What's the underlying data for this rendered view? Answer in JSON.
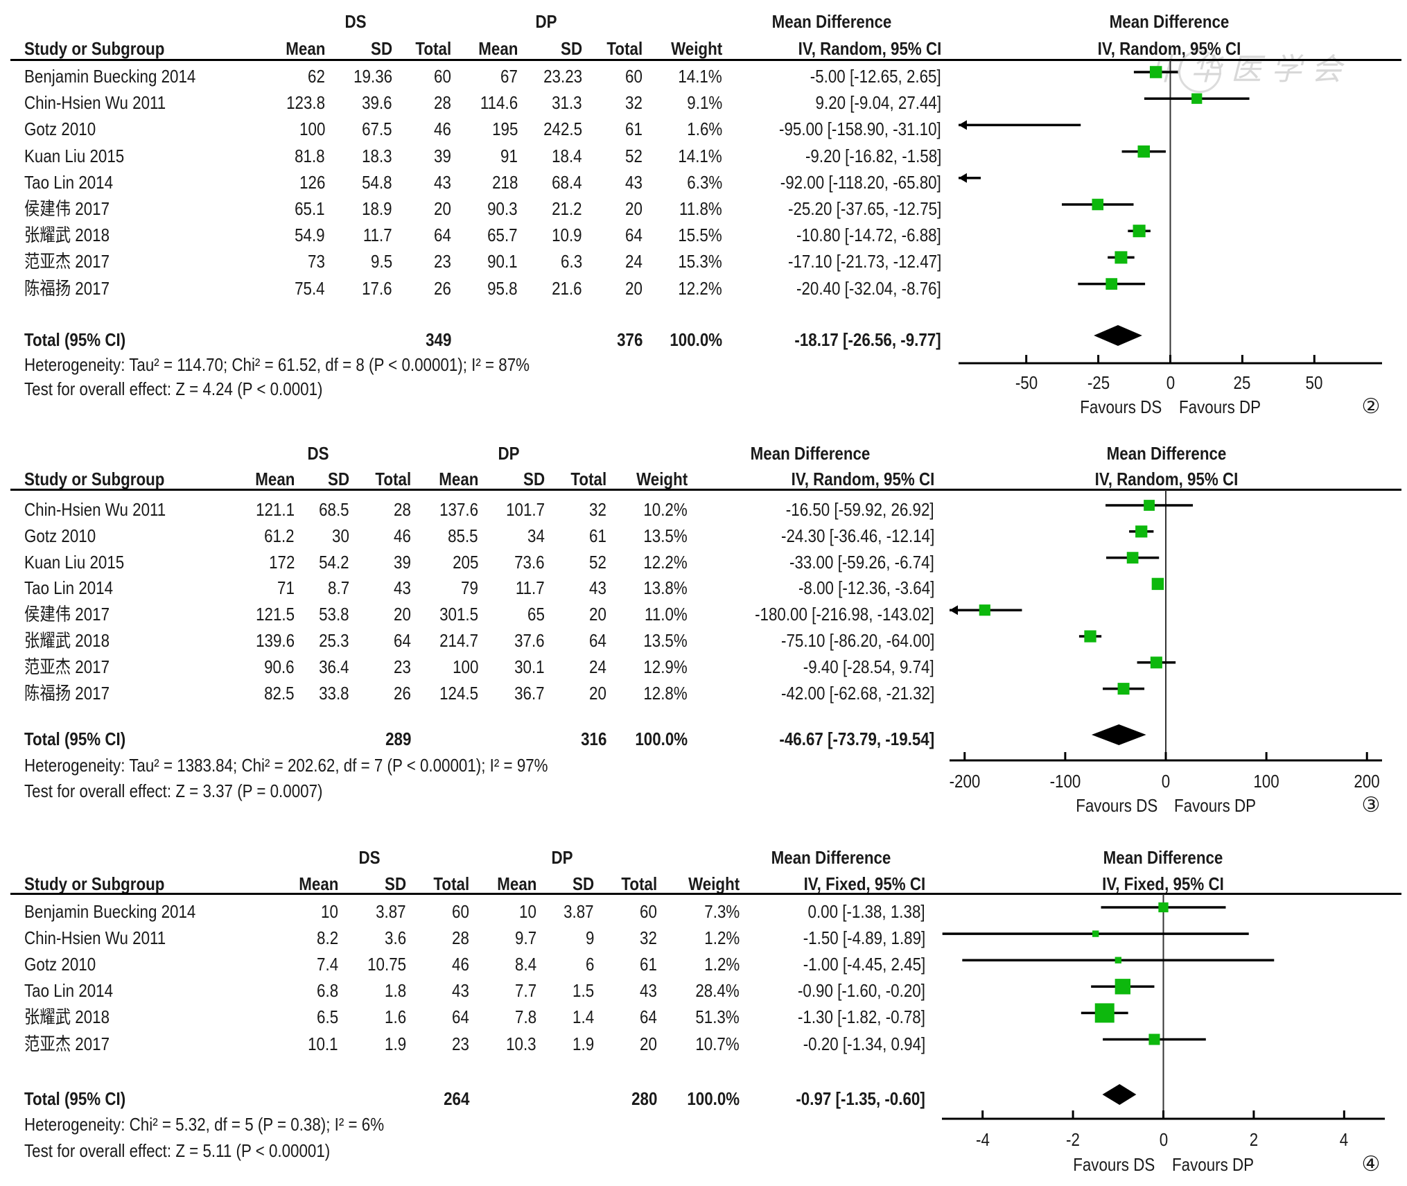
{
  "watermark": "中华医学会",
  "colors": {
    "square": "#0db80d",
    "line": "#000000",
    "diamond": "#000000",
    "text": "#1a1a1a"
  },
  "chart_data": [
    {
      "type": "forest",
      "panel_label": "②",
      "group_a": "DS",
      "group_b": "DP",
      "columns": [
        "Study or Subgroup",
        "Mean",
        "SD",
        "Total",
        "Mean",
        "SD",
        "Total",
        "Weight"
      ],
      "effect_header": [
        "Mean Difference",
        "IV, Random, 95% CI"
      ],
      "plot_header": [
        "Mean Difference",
        "IV, Random, 95% CI"
      ],
      "studies": [
        {
          "name": "Benjamin Buecking 2014",
          "a_mean": "62",
          "a_sd": "19.36",
          "a_total": "60",
          "b_mean": "67",
          "b_sd": "23.23",
          "b_total": "60",
          "weight": "14.1%",
          "ci_text": "-5.00 [-12.65, 2.65]",
          "md": -5.0,
          "lo": -12.65,
          "hi": 2.65,
          "w": 14.1
        },
        {
          "name": "Chin-Hsien Wu 2011",
          "a_mean": "123.8",
          "a_sd": "39.6",
          "a_total": "28",
          "b_mean": "114.6",
          "b_sd": "31.3",
          "b_total": "32",
          "weight": "9.1%",
          "ci_text": "9.20 [-9.04, 27.44]",
          "md": 9.2,
          "lo": -9.04,
          "hi": 27.44,
          "w": 9.1
        },
        {
          "name": "Gotz 2010",
          "a_mean": "100",
          "a_sd": "67.5",
          "a_total": "46",
          "b_mean": "195",
          "b_sd": "242.5",
          "b_total": "61",
          "weight": "1.6%",
          "ci_text": "-95.00 [-158.90, -31.10]",
          "md": -95.0,
          "lo": -158.9,
          "hi": -31.1,
          "w": 1.6
        },
        {
          "name": "Kuan Liu 2015",
          "a_mean": "81.8",
          "a_sd": "18.3",
          "a_total": "39",
          "b_mean": "91",
          "b_sd": "18.4",
          "b_total": "52",
          "weight": "14.1%",
          "ci_text": "-9.20 [-16.82, -1.58]",
          "md": -9.2,
          "lo": -16.82,
          "hi": -1.58,
          "w": 14.1
        },
        {
          "name": "Tao Lin 2014",
          "a_mean": "126",
          "a_sd": "54.8",
          "a_total": "43",
          "b_mean": "218",
          "b_sd": "68.4",
          "b_total": "43",
          "weight": "6.3%",
          "ci_text": "-92.00 [-118.20, -65.80]",
          "md": -92.0,
          "lo": -118.2,
          "hi": -65.8,
          "w": 6.3
        },
        {
          "name": "侯建伟 2017",
          "a_mean": "65.1",
          "a_sd": "18.9",
          "a_total": "20",
          "b_mean": "90.3",
          "b_sd": "21.2",
          "b_total": "20",
          "weight": "11.8%",
          "ci_text": "-25.20 [-37.65, -12.75]",
          "md": -25.2,
          "lo": -37.65,
          "hi": -12.75,
          "w": 11.8
        },
        {
          "name": "张耀武 2018",
          "a_mean": "54.9",
          "a_sd": "11.7",
          "a_total": "64",
          "b_mean": "65.7",
          "b_sd": "10.9",
          "b_total": "64",
          "weight": "15.5%",
          "ci_text": "-10.80 [-14.72, -6.88]",
          "md": -10.8,
          "lo": -14.72,
          "hi": -6.88,
          "w": 15.5
        },
        {
          "name": "范亚杰 2017",
          "a_mean": "73",
          "a_sd": "9.5",
          "a_total": "23",
          "b_mean": "90.1",
          "b_sd": "6.3",
          "b_total": "24",
          "weight": "15.3%",
          "ci_text": "-17.10 [-21.73, -12.47]",
          "md": -17.1,
          "lo": -21.73,
          "hi": -12.47,
          "w": 15.3
        },
        {
          "name": "陈福扬 2017",
          "a_mean": "75.4",
          "a_sd": "17.6",
          "a_total": "26",
          "b_mean": "95.8",
          "b_sd": "21.6",
          "b_total": "20",
          "weight": "12.2%",
          "ci_text": "-20.40 [-32.04, -8.76]",
          "md": -20.4,
          "lo": -32.04,
          "hi": -8.76,
          "w": 12.2
        }
      ],
      "total": {
        "label": "Total (95% CI)",
        "a_total": "349",
        "b_total": "376",
        "weight": "100.0%",
        "ci_text": "-18.17 [-26.56, -9.77]",
        "md": -18.17,
        "lo": -26.56,
        "hi": -9.77
      },
      "heterogeneity": "Heterogeneity: Tau² = 114.70; Chi² = 61.52, df = 8 (P < 0.00001); I² = 87%",
      "overall_effect": "Test for overall effect: Z = 4.24 (P < 0.0001)",
      "xlim": [
        -73.5,
        73.5
      ],
      "xticks": [
        -50,
        -25,
        0,
        25,
        50
      ],
      "xtick_labels": [
        "-50",
        "-25",
        "0",
        "25",
        "50"
      ],
      "favours_left": "Favours DS",
      "favours_right": "Favours DP"
    },
    {
      "type": "forest",
      "panel_label": "③",
      "group_a": "DS",
      "group_b": "DP",
      "columns": [
        "Study or Subgroup",
        "Mean",
        "SD",
        "Total",
        "Mean",
        "SD",
        "Total",
        "Weight"
      ],
      "effect_header": [
        "Mean Difference",
        "IV, Random, 95% CI"
      ],
      "plot_header": [
        "Mean Difference",
        "IV, Random, 95% CI"
      ],
      "studies": [
        {
          "name": "Chin-Hsien Wu 2011",
          "a_mean": "121.1",
          "a_sd": "68.5",
          "a_total": "28",
          "b_mean": "137.6",
          "b_sd": "101.7",
          "b_total": "32",
          "weight": "10.2%",
          "ci_text": "-16.50 [-59.92, 26.92]",
          "md": -16.5,
          "lo": -59.92,
          "hi": 26.92,
          "w": 10.2
        },
        {
          "name": "Gotz 2010",
          "a_mean": "61.2",
          "a_sd": "30",
          "a_total": "46",
          "b_mean": "85.5",
          "b_sd": "34",
          "b_total": "61",
          "weight": "13.5%",
          "ci_text": "-24.30 [-36.46, -12.14]",
          "md": -24.3,
          "lo": -36.46,
          "hi": -12.14,
          "w": 13.5
        },
        {
          "name": "Kuan Liu 2015",
          "a_mean": "172",
          "a_sd": "54.2",
          "a_total": "39",
          "b_mean": "205",
          "b_sd": "73.6",
          "b_total": "52",
          "weight": "12.2%",
          "ci_text": "-33.00 [-59.26, -6.74]",
          "md": -33.0,
          "lo": -59.26,
          "hi": -6.74,
          "w": 12.2
        },
        {
          "name": "Tao Lin 2014",
          "a_mean": "71",
          "a_sd": "8.7",
          "a_total": "43",
          "b_mean": "79",
          "b_sd": "11.7",
          "b_total": "43",
          "weight": "13.8%",
          "ci_text": "-8.00 [-12.36, -3.64]",
          "md": -8.0,
          "lo": -12.36,
          "hi": -3.64,
          "w": 13.8
        },
        {
          "name": "侯建伟 2017",
          "a_mean": "121.5",
          "a_sd": "53.8",
          "a_total": "20",
          "b_mean": "301.5",
          "b_sd": "65",
          "b_total": "20",
          "weight": "11.0%",
          "ci_text": "-180.00 [-216.98, -143.02]",
          "md": -180.0,
          "lo": -216.98,
          "hi": -143.02,
          "w": 11.0
        },
        {
          "name": "张耀武 2018",
          "a_mean": "139.6",
          "a_sd": "25.3",
          "a_total": "64",
          "b_mean": "214.7",
          "b_sd": "37.6",
          "b_total": "64",
          "weight": "13.5%",
          "ci_text": "-75.10 [-86.20, -64.00]",
          "md": -75.1,
          "lo": -86.2,
          "hi": -64.0,
          "w": 13.5
        },
        {
          "name": "范亚杰 2017",
          "a_mean": "90.6",
          "a_sd": "36.4",
          "a_total": "23",
          "b_mean": "100",
          "b_sd": "30.1",
          "b_total": "24",
          "weight": "12.9%",
          "ci_text": "-9.40 [-28.54, 9.74]",
          "md": -9.4,
          "lo": -28.54,
          "hi": 9.74,
          "w": 12.9
        },
        {
          "name": "陈福扬 2017",
          "a_mean": "82.5",
          "a_sd": "33.8",
          "a_total": "26",
          "b_mean": "124.5",
          "b_sd": "36.7",
          "b_total": "20",
          "weight": "12.8%",
          "ci_text": "-42.00 [-62.68, -21.32]",
          "md": -42.0,
          "lo": -62.68,
          "hi": -21.32,
          "w": 12.8
        }
      ],
      "total": {
        "label": "Total (95% CI)",
        "a_total": "289",
        "b_total": "316",
        "weight": "100.0%",
        "ci_text": "-46.67 [-73.79, -19.54]",
        "md": -46.67,
        "lo": -73.79,
        "hi": -19.54
      },
      "heterogeneity": "Heterogeneity: Tau² = 1383.84; Chi² = 202.62, df = 7 (P < 0.00001); I² = 97%",
      "overall_effect": "Test for overall effect: Z = 3.37 (P = 0.0007)",
      "xlim": [
        -215,
        215
      ],
      "xticks": [
        -200,
        -100,
        0,
        100,
        200
      ],
      "xtick_labels": [
        "-200",
        "-100",
        "0",
        "100",
        "200"
      ],
      "favours_left": "Favours DS",
      "favours_right": "Favours DP"
    },
    {
      "type": "forest",
      "panel_label": "④",
      "group_a": "DS",
      "group_b": "DP",
      "columns": [
        "Study or Subgroup",
        "Mean",
        "SD",
        "Total",
        "Mean",
        "SD",
        "Total",
        "Weight"
      ],
      "effect_header": [
        "Mean Difference",
        "IV, Fixed, 95% CI"
      ],
      "plot_header": [
        "Mean Difference",
        "IV, Fixed, 95% CI"
      ],
      "studies": [
        {
          "name": "Benjamin Buecking 2014",
          "a_mean": "10",
          "a_sd": "3.87",
          "a_total": "60",
          "b_mean": "10",
          "b_sd": "3.87",
          "b_total": "60",
          "weight": "7.3%",
          "ci_text": "0.00 [-1.38, 1.38]",
          "md": 0.0,
          "lo": -1.38,
          "hi": 1.38,
          "w": 7.3
        },
        {
          "name": "Chin-Hsien Wu 2011",
          "a_mean": "8.2",
          "a_sd": "3.6",
          "a_total": "28",
          "b_mean": "9.7",
          "b_sd": "9",
          "b_total": "32",
          "weight": "1.2%",
          "ci_text": "-1.50 [-4.89, 1.89]",
          "md": -1.5,
          "lo": -4.89,
          "hi": 1.89,
          "w": 1.2
        },
        {
          "name": "Gotz 2010",
          "a_mean": "7.4",
          "a_sd": "10.75",
          "a_total": "46",
          "b_mean": "8.4",
          "b_sd": "6",
          "b_total": "61",
          "weight": "1.2%",
          "ci_text": "-1.00 [-4.45, 2.45]",
          "md": -1.0,
          "lo": -4.45,
          "hi": 2.45,
          "w": 1.2
        },
        {
          "name": "Tao Lin 2014",
          "a_mean": "6.8",
          "a_sd": "1.8",
          "a_total": "43",
          "b_mean": "7.7",
          "b_sd": "1.5",
          "b_total": "43",
          "weight": "28.4%",
          "ci_text": "-0.90 [-1.60, -0.20]",
          "md": -0.9,
          "lo": -1.6,
          "hi": -0.2,
          "w": 28.4
        },
        {
          "name": "张耀武 2018",
          "a_mean": "6.5",
          "a_sd": "1.6",
          "a_total": "64",
          "b_mean": "7.8",
          "b_sd": "1.4",
          "b_total": "64",
          "weight": "51.3%",
          "ci_text": "-1.30 [-1.82, -0.78]",
          "md": -1.3,
          "lo": -1.82,
          "hi": -0.78,
          "w": 51.3
        },
        {
          "name": "范亚杰 2017",
          "a_mean": "10.1",
          "a_sd": "1.9",
          "a_total": "23",
          "b_mean": "10.3",
          "b_sd": "1.9",
          "b_total": "20",
          "weight": "10.7%",
          "ci_text": "-0.20 [-1.34, 0.94]",
          "md": -0.2,
          "lo": -1.34,
          "hi": 0.94,
          "w": 10.7
        }
      ],
      "total": {
        "label": "Total (95% CI)",
        "a_total": "264",
        "b_total": "280",
        "weight": "100.0%",
        "ci_text": "-0.97 [-1.35, -0.60]",
        "md": -0.97,
        "lo": -1.35,
        "hi": -0.6
      },
      "heterogeneity": "Heterogeneity: Chi² = 5.32, df = 5 (P = 0.38); I² = 6%",
      "overall_effect": "Test for overall effect: Z = 5.11 (P < 0.00001)",
      "xlim": [
        -4.9,
        4.9
      ],
      "xticks": [
        -4,
        -2,
        0,
        2,
        4
      ],
      "xtick_labels": [
        "-4",
        "-2",
        "0",
        "2",
        "4"
      ],
      "favours_left": "Favours DS",
      "favours_right": "Favours DP"
    }
  ]
}
